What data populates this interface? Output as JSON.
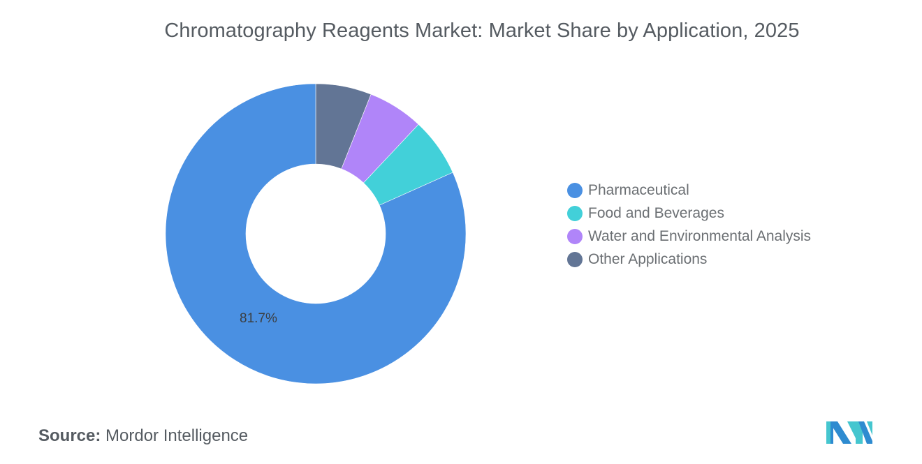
{
  "header": {
    "title": "Chromatography Reagents Market: Market Share by Application, 2025"
  },
  "legend": {
    "items": [
      {
        "label": "Pharmaceutical",
        "color": "#4a90e2"
      },
      {
        "label": "Food and Beverages",
        "color": "#42d0d9"
      },
      {
        "label": "Water and Environmental Analysis",
        "color": "#b085f9"
      },
      {
        "label": "Other Applications",
        "color": "#627595"
      }
    ]
  },
  "footer": {
    "source_label": "Source:",
    "source_value": "Mordor Intelligence"
  },
  "data_labels": {
    "pharmaceutical": "81.7%"
  },
  "chart_data": {
    "type": "pie",
    "subtype": "donut",
    "title": "Chromatography Reagents Market: Market Share by Application, 2025",
    "categories": [
      "Pharmaceutical",
      "Food and Beverages",
      "Water and Environmental Analysis",
      "Other Applications"
    ],
    "values": [
      81.7,
      6.3,
      6.0,
      6.0
    ],
    "unit": "%",
    "colors": [
      "#4a90e2",
      "#42d0d9",
      "#b085f9",
      "#627595"
    ],
    "annotations": [
      {
        "category": "Pharmaceutical",
        "text": "81.7%"
      }
    ],
    "legend_position": "right",
    "start_angle_deg": 0,
    "direction": "counterclockwise-from-top (Other, Water, Food clockwise from 12 o'clock; Pharmaceutical fills remainder)",
    "source": "Mordor Intelligence"
  }
}
